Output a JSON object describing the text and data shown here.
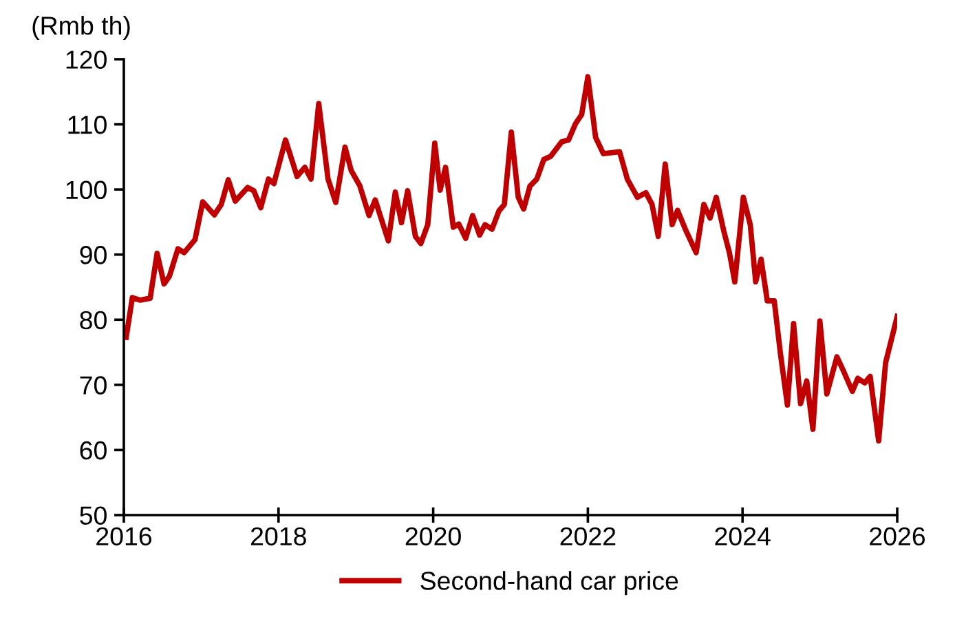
{
  "chart_data": {
    "type": "line",
    "ylabel": "(Rmb th)",
    "xlim": [
      2016,
      2026
    ],
    "xticks": [
      2016,
      2018,
      2020,
      2022,
      2024,
      2026
    ],
    "ylim": [
      50,
      120
    ],
    "yticks": [
      50,
      60,
      70,
      80,
      90,
      100,
      110,
      120
    ],
    "grid": false,
    "legend": "bottom",
    "marker": "none",
    "line_style": "solid",
    "series": [
      {
        "name": "Second-hand car price",
        "color": "#c00000",
        "x": [
          2016.03,
          2016.11,
          2016.21,
          2016.34,
          2016.43,
          2016.52,
          2016.59,
          2016.7,
          2016.78,
          2016.92,
          2017.02,
          2017.17,
          2017.26,
          2017.35,
          2017.44,
          2017.6,
          2017.68,
          2017.77,
          2017.87,
          2017.94,
          2018.09,
          2018.24,
          2018.34,
          2018.42,
          2018.52,
          2018.64,
          2018.74,
          2018.86,
          2018.94,
          2019.05,
          2019.17,
          2019.25,
          2019.42,
          2019.51,
          2019.59,
          2019.67,
          2019.77,
          2019.84,
          2019.93,
          2020.02,
          2020.09,
          2020.16,
          2020.26,
          2020.33,
          2020.42,
          2020.51,
          2020.6,
          2020.67,
          2020.76,
          2020.85,
          2020.92,
          2021.01,
          2021.1,
          2021.17,
          2021.25,
          2021.34,
          2021.43,
          2021.52,
          2021.66,
          2021.75,
          2021.84,
          2021.92,
          2022.0,
          2022.1,
          2022.2,
          2022.41,
          2022.51,
          2022.64,
          2022.75,
          2022.83,
          2022.91,
          2023.0,
          2023.09,
          2023.16,
          2023.26,
          2023.4,
          2023.5,
          2023.58,
          2023.66,
          2023.76,
          2023.83,
          2023.9,
          2024.01,
          2024.1,
          2024.17,
          2024.24,
          2024.32,
          2024.41,
          2024.49,
          2024.58,
          2024.66,
          2024.75,
          2024.83,
          2024.91,
          2025.0,
          2025.09,
          2025.22,
          2025.31,
          2025.42,
          2025.49,
          2025.58,
          2025.65,
          2025.76,
          2025.85,
          2026.0
        ],
        "values": [
          77.3,
          83.4,
          83,
          83.3,
          90.2,
          85.5,
          86.7,
          90.9,
          90.3,
          92.3,
          98.1,
          96.1,
          97.7,
          101.5,
          98.2,
          100.3,
          99.8,
          97.2,
          101.6,
          100.9,
          107.6,
          102,
          103.4,
          101.6,
          113.2,
          101.6,
          98,
          106.5,
          102.9,
          100.6,
          96,
          98.4,
          92.1,
          99.6,
          94.9,
          99.8,
          92.8,
          91.7,
          94.6,
          107.1,
          99.9,
          103.4,
          94.2,
          94.7,
          92.5,
          96,
          93,
          94.6,
          93.9,
          96.7,
          97.7,
          108.8,
          98.8,
          97,
          100.5,
          101.6,
          104.6,
          105.1,
          107.3,
          107.6,
          110.1,
          111.5,
          117.3,
          108,
          105.5,
          105.8,
          101.6,
          98.8,
          99.5,
          97.7,
          92.8,
          103.9,
          94.6,
          96.8,
          93.9,
          90.3,
          97.7,
          95.6,
          98.8,
          93.5,
          90.3,
          85.8,
          98.8,
          94.6,
          85.8,
          89.3,
          82.9,
          82.9,
          74.8,
          66.9,
          79.4,
          67.1,
          70.6,
          63.2,
          79.8,
          68.6,
          74.3,
          72,
          69,
          71,
          70.3,
          71.3,
          61.4,
          73.4,
          80.5
        ]
      }
    ]
  }
}
